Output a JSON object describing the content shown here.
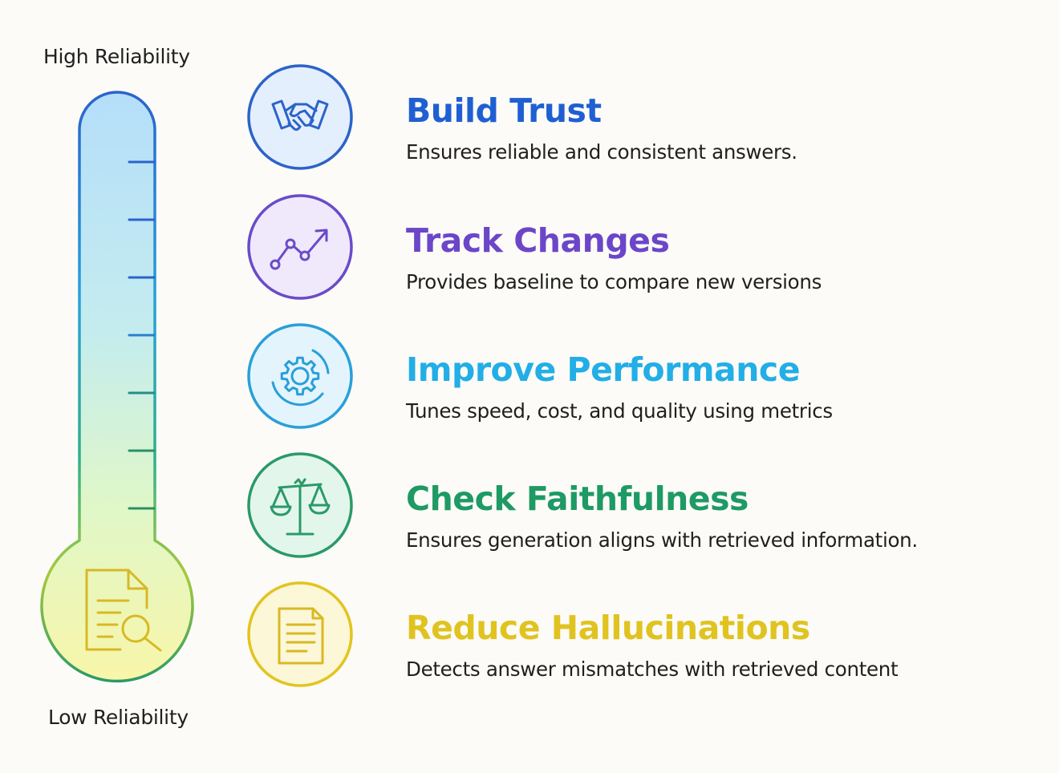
{
  "scale": {
    "high_label": "High Reliability",
    "low_label": "Low Reliability",
    "bulb_icon": "document-search-icon",
    "gradient_colors": [
      "#b5defa",
      "#c4ecef",
      "#dff7c9",
      "#f8f6a9"
    ]
  },
  "items": [
    {
      "title": "Build Trust",
      "description": "Ensures reliable and consistent answers.",
      "icon": "handshake-icon",
      "color": "#1f5fd3",
      "ring": "#2c63c9",
      "fill": "#e4effd"
    },
    {
      "title": "Track Changes",
      "description": "Provides baseline to compare new versions",
      "icon": "trend-chart-icon",
      "color": "#6b46c9",
      "ring": "#6a4bc9",
      "fill": "#efe9fb"
    },
    {
      "title": "Improve Performance",
      "description": "Tunes speed, cost, and quality using metrics",
      "icon": "gear-icon",
      "color": "#22aee6",
      "ring": "#2a9fd8",
      "fill": "#e3f4fd"
    },
    {
      "title": "Check Faithfulness",
      "description": "Ensures generation aligns with retrieved information.",
      "icon": "balance-scale-icon",
      "color": "#1e9a64",
      "ring": "#2a9a68",
      "fill": "#e3f6ec"
    },
    {
      "title": "Reduce Hallucinations",
      "description": "Detects answer mismatches with retrieved content",
      "icon": "document-icon",
      "color": "#e0c320",
      "ring": "#e2c41e",
      "fill": "#fbf7d7"
    }
  ]
}
